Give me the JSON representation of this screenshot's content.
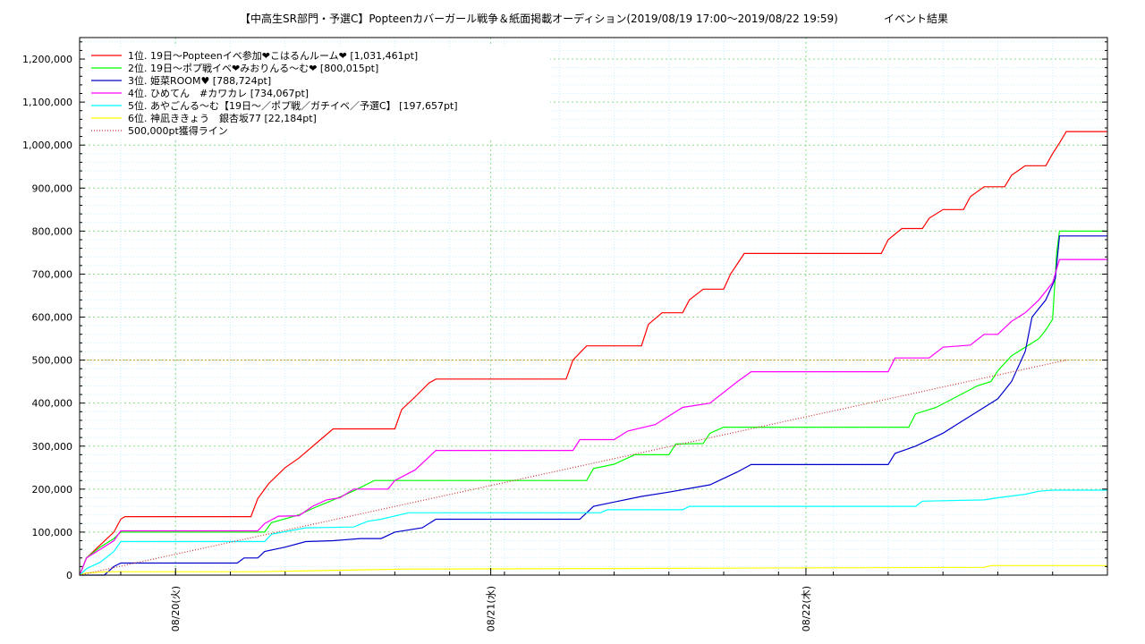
{
  "chart_data": {
    "type": "line",
    "title": "【中高生SR部門・予選C】Popteenカバーガール戦争＆紙面掲載オーディション(2019/08/19 17:00～2019/08/22 19:59)",
    "subtitle": "イベント結果",
    "xlabel": "",
    "ylabel": "",
    "ylim": [
      0,
      1250000
    ],
    "xlim_hours": [
      0,
      75
    ],
    "x_unit": "hours since 2019/08/19 17:00",
    "yticks": [
      0,
      100000,
      200000,
      300000,
      400000,
      500000,
      600000,
      700000,
      800000,
      900000,
      1000000,
      1100000,
      1200000
    ],
    "ytick_labels": [
      "0",
      "100,000",
      "200,000",
      "300,000",
      "400,000",
      "500,000",
      "600,000",
      "700,000",
      "800,000",
      "900,000",
      "1,000,000",
      "1,100,000",
      "1,200,000"
    ],
    "xticks": [
      {
        "x": 7,
        "label": "08/20(火)"
      },
      {
        "x": 30,
        "label": "08/21(水)"
      },
      {
        "x": 53,
        "label": "08/22(木)"
      }
    ],
    "grid": true,
    "legend_position": "top-left",
    "series": [
      {
        "name": "1位. 19日～Popteenイベ参加❤こはるんルーム❤ [1,031,461pt]",
        "color": "#ff0000",
        "points": [
          [
            0,
            0
          ],
          [
            0.5,
            40000
          ],
          [
            1.5,
            70000
          ],
          [
            2.5,
            100000
          ],
          [
            3,
            130000
          ],
          [
            3.3,
            136000
          ],
          [
            12.5,
            136000
          ],
          [
            13,
            178000
          ],
          [
            13.8,
            213000
          ],
          [
            15,
            250000
          ],
          [
            16,
            272000
          ],
          [
            17.5,
            313000
          ],
          [
            18.5,
            340000
          ],
          [
            23,
            340000
          ],
          [
            23.5,
            385000
          ],
          [
            24.5,
            415000
          ],
          [
            25.5,
            447000
          ],
          [
            26,
            456000
          ],
          [
            35.5,
            456000
          ],
          [
            36,
            500000
          ],
          [
            37,
            533000
          ],
          [
            41,
            533000
          ],
          [
            41.5,
            583000
          ],
          [
            42.5,
            610000
          ],
          [
            44,
            610000
          ],
          [
            44.5,
            640000
          ],
          [
            45.5,
            665000
          ],
          [
            47,
            665000
          ],
          [
            47.5,
            700000
          ],
          [
            48.5,
            748000
          ],
          [
            58.5,
            748000
          ],
          [
            59,
            780000
          ],
          [
            60,
            806000
          ],
          [
            61.5,
            806000
          ],
          [
            62,
            830000
          ],
          [
            63,
            850000
          ],
          [
            64.5,
            850000
          ],
          [
            65,
            880000
          ],
          [
            66,
            903000
          ],
          [
            67.5,
            903000
          ],
          [
            68,
            930000
          ],
          [
            69,
            952000
          ],
          [
            70.5,
            952000
          ],
          [
            71,
            980000
          ],
          [
            71.5,
            1005000
          ],
          [
            72,
            1031461
          ],
          [
            75,
            1031461
          ]
        ]
      },
      {
        "name": "2位. 19日～ポプ戦イベ❤みおりんる～む❤ [800,015pt]",
        "color": "#00ff00",
        "points": [
          [
            0,
            0
          ],
          [
            0.5,
            40000
          ],
          [
            1.5,
            65000
          ],
          [
            2.5,
            85000
          ],
          [
            3,
            100000
          ],
          [
            13.5,
            100000
          ],
          [
            14,
            122000
          ],
          [
            16,
            140000
          ],
          [
            17,
            155000
          ],
          [
            18.5,
            175000
          ],
          [
            20,
            196000
          ],
          [
            21.5,
            220000
          ],
          [
            37,
            220000
          ],
          [
            37.5,
            248000
          ],
          [
            39,
            258000
          ],
          [
            40.5,
            280000
          ],
          [
            43,
            280000
          ],
          [
            43.5,
            305000
          ],
          [
            45.5,
            306000
          ],
          [
            46,
            330000
          ],
          [
            47,
            344000
          ],
          [
            60.5,
            344000
          ],
          [
            61,
            375000
          ],
          [
            62.5,
            390000
          ],
          [
            64,
            415000
          ],
          [
            65.5,
            440000
          ],
          [
            66.5,
            450000
          ],
          [
            67,
            475000
          ],
          [
            68,
            510000
          ],
          [
            69,
            530000
          ],
          [
            70,
            550000
          ],
          [
            70.5,
            570000
          ],
          [
            71,
            595000
          ],
          [
            71.3,
            750000
          ],
          [
            71.5,
            800015
          ],
          [
            75,
            800015
          ]
        ]
      },
      {
        "name": "3位. 姫菜ROOM♥ [788,724pt]",
        "color": "#0000cc",
        "points": [
          [
            0,
            0
          ],
          [
            1.8,
            0
          ],
          [
            2.5,
            20000
          ],
          [
            3,
            28000
          ],
          [
            11.5,
            28000
          ],
          [
            12,
            40000
          ],
          [
            13,
            40000
          ],
          [
            13.5,
            55000
          ],
          [
            15,
            65000
          ],
          [
            16.5,
            78000
          ],
          [
            18.5,
            80000
          ],
          [
            20.5,
            85000
          ],
          [
            22,
            85000
          ],
          [
            23,
            100000
          ],
          [
            25,
            110000
          ],
          [
            26,
            130000
          ],
          [
            36.5,
            130000
          ],
          [
            37.5,
            160000
          ],
          [
            39,
            170000
          ],
          [
            41,
            183000
          ],
          [
            43,
            193000
          ],
          [
            46,
            210000
          ],
          [
            48,
            240000
          ],
          [
            49,
            257000
          ],
          [
            59,
            257000
          ],
          [
            59.5,
            283000
          ],
          [
            61,
            300000
          ],
          [
            63,
            330000
          ],
          [
            64.5,
            360000
          ],
          [
            65.5,
            380000
          ],
          [
            67,
            410000
          ],
          [
            68,
            450000
          ],
          [
            69,
            520000
          ],
          [
            69.5,
            600000
          ],
          [
            70.5,
            640000
          ],
          [
            71.2,
            690000
          ],
          [
            71.5,
            788724
          ],
          [
            75,
            788724
          ]
        ]
      },
      {
        "name": "4位. ひめてん　#カワカレ [734,067pt]",
        "color": "#ff00ff",
        "points": [
          [
            0,
            0
          ],
          [
            0.5,
            40000
          ],
          [
            1.5,
            60000
          ],
          [
            2.5,
            80000
          ],
          [
            3,
            103000
          ],
          [
            13,
            103000
          ],
          [
            13.5,
            120000
          ],
          [
            14.5,
            137000
          ],
          [
            16,
            138000
          ],
          [
            17,
            160000
          ],
          [
            18,
            175000
          ],
          [
            19,
            180000
          ],
          [
            20,
            200000
          ],
          [
            22.5,
            200000
          ],
          [
            23,
            220000
          ],
          [
            24.5,
            245000
          ],
          [
            26,
            290000
          ],
          [
            36,
            290000
          ],
          [
            36.5,
            315000
          ],
          [
            39,
            315000
          ],
          [
            40,
            335000
          ],
          [
            42,
            350000
          ],
          [
            44,
            390000
          ],
          [
            46,
            400000
          ],
          [
            48,
            450000
          ],
          [
            49,
            473000
          ],
          [
            59,
            473000
          ],
          [
            59.5,
            505000
          ],
          [
            62,
            505000
          ],
          [
            63,
            530000
          ],
          [
            65,
            535000
          ],
          [
            66,
            560000
          ],
          [
            67,
            560000
          ],
          [
            68,
            590000
          ],
          [
            69,
            610000
          ],
          [
            70,
            640000
          ],
          [
            71,
            680000
          ],
          [
            71.5,
            734067
          ],
          [
            75,
            734067
          ]
        ]
      },
      {
        "name": "5位. あやごんる～む【19日～／ポプ戦／ガチイベ／予選C】 [197,657pt]",
        "color": "#00ffff",
        "points": [
          [
            0,
            0
          ],
          [
            0.5,
            15000
          ],
          [
            1.5,
            30000
          ],
          [
            2.5,
            55000
          ],
          [
            3,
            78000
          ],
          [
            13.5,
            78000
          ],
          [
            14,
            95000
          ],
          [
            16.5,
            110000
          ],
          [
            20,
            112000
          ],
          [
            21,
            125000
          ],
          [
            22,
            130000
          ],
          [
            24,
            145000
          ],
          [
            38,
            145000
          ],
          [
            38.5,
            152000
          ],
          [
            44,
            152000
          ],
          [
            44.5,
            160000
          ],
          [
            61,
            160000
          ],
          [
            61.5,
            172000
          ],
          [
            66,
            175000
          ],
          [
            67,
            180000
          ],
          [
            69,
            188000
          ],
          [
            70,
            195000
          ],
          [
            71,
            197657
          ],
          [
            75,
            197657
          ]
        ]
      },
      {
        "name": "6位. 神凪ききょう　銀杏坂77 [22,184pt]",
        "color": "#ffff00",
        "points": [
          [
            0,
            0
          ],
          [
            0.5,
            5000
          ],
          [
            2,
            8000
          ],
          [
            13,
            8000
          ],
          [
            23.5,
            14000
          ],
          [
            45,
            16000
          ],
          [
            66,
            18000
          ],
          [
            66.5,
            22184
          ],
          [
            75,
            22184
          ]
        ]
      },
      {
        "name": "500,000pt獲得ライン",
        "color": "#cc3333",
        "dotted": true,
        "points": [
          [
            0,
            0
          ],
          [
            72,
            500000
          ]
        ]
      }
    ],
    "reference_line": {
      "value": 500000,
      "color": "#cc9933"
    }
  }
}
